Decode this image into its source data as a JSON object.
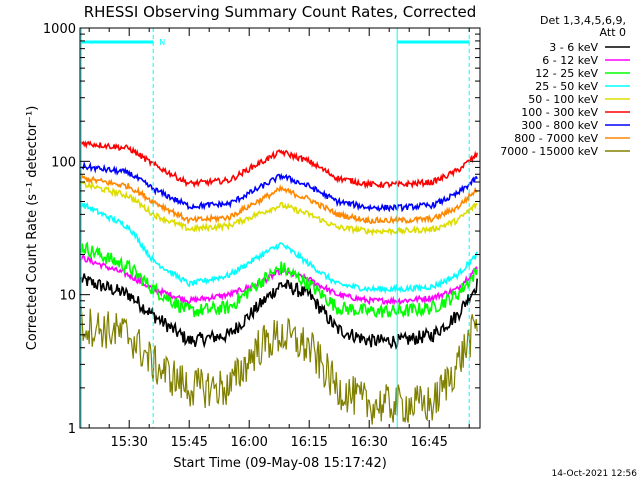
{
  "chart_data": {
    "type": "line",
    "title": "RHESSI Observing Summary Count Rates, Corrected",
    "xlabel": "Start Time (09-May-08 15:17:42)",
    "ylabel": "Corrected Count Rate (s⁻¹ detector⁻¹)",
    "y_scale": "log",
    "ylim": [
      1,
      1000
    ],
    "y_ticks": [
      "1",
      "10",
      "100",
      "1000"
    ],
    "x_ticks": [
      "15:30",
      "15:45",
      "16:00",
      "16:15",
      "16:30",
      "16:45"
    ],
    "x_tick_minutes": [
      30,
      45,
      60,
      75,
      90,
      105
    ],
    "xlim_minutes": [
      17.7,
      117.7
    ],
    "legend": {
      "position": "right",
      "header_lines": [
        "Det 1,3,4,5,6,9,",
        "Att 0"
      ],
      "entries": [
        {
          "label": "3 - 6 keV",
          "color": "#000000"
        },
        {
          "label": "6 - 12 keV",
          "color": "#ff00ff"
        },
        {
          "label": "12 - 25 keV",
          "color": "#00ff00"
        },
        {
          "label": "25 - 50 keV",
          "color": "#00ffff"
        },
        {
          "label": "50 - 100 keV",
          "color": "#dddd00"
        },
        {
          "label": "100 - 300 keV",
          "color": "#ff0000"
        },
        {
          "label": "300 - 800 keV",
          "color": "#0000ff"
        },
        {
          "label": "800 - 7000 keV",
          "color": "#ff8800"
        },
        {
          "label": "7000 - 15000 keV",
          "color": "#808000"
        }
      ]
    },
    "x_minutes": [
      18,
      30,
      36,
      45,
      55,
      62,
      68,
      75,
      82,
      90,
      98,
      106,
      112,
      117
    ],
    "series": [
      {
        "name": "3 - 6 keV",
        "color": "#000000",
        "values": [
          13,
          10,
          7,
          4.5,
          5,
          8,
          12,
          10,
          5.5,
          4.5,
          4.5,
          5,
          7,
          12
        ]
      },
      {
        "name": "6 - 12 keV",
        "color": "#ff00ff",
        "values": [
          19,
          14,
          11,
          9,
          10,
          12,
          15,
          13,
          10,
          9,
          9,
          9.5,
          11,
          16
        ]
      },
      {
        "name": "12 - 25 keV",
        "color": "#00ff00",
        "values": [
          23,
          16,
          11,
          7.5,
          8,
          12,
          16,
          12,
          8,
          7.5,
          7.5,
          8,
          10,
          15
        ]
      },
      {
        "name": "25 - 50 keV",
        "color": "#00ffff",
        "values": [
          48,
          32,
          18,
          12,
          14,
          19,
          24,
          17,
          12,
          11,
          11,
          11.5,
          14,
          20
        ]
      },
      {
        "name": "50 - 100 keV",
        "color": "#dddd00",
        "values": [
          68,
          55,
          40,
          31,
          33,
          40,
          47,
          40,
          32,
          30,
          30,
          31,
          36,
          48
        ]
      },
      {
        "name": "100 - 300 keV",
        "color": "#ff0000",
        "values": [
          138,
          125,
          95,
          68,
          72,
          95,
          118,
          100,
          75,
          67,
          67,
          70,
          85,
          112
        ]
      },
      {
        "name": "300 - 800 keV",
        "color": "#0000ff",
        "values": [
          92,
          82,
          62,
          46,
          48,
          62,
          78,
          65,
          50,
          45,
          45,
          47,
          57,
          75
        ]
      },
      {
        "name": "800 - 7000 keV",
        "color": "#ff8800",
        "values": [
          75,
          65,
          50,
          36,
          38,
          50,
          62,
          52,
          40,
          36,
          36,
          37,
          45,
          62
        ]
      },
      {
        "name": "7000 - 15000 keV",
        "color": "#808000",
        "values": [
          6,
          5,
          3,
          2,
          2,
          4,
          5,
          4,
          2,
          1.5,
          1.5,
          1.5,
          3,
          6
        ]
      }
    ],
    "flags": {
      "color": "#00ffff",
      "bar_intervals_minutes": [
        [
          18,
          36
        ],
        [
          97,
          115
        ]
      ],
      "vertical_markers_minutes": [
        18,
        36,
        97,
        115
      ],
      "marker_label": "N"
    }
  },
  "timestamp": "14-Oct-2021 12:56"
}
